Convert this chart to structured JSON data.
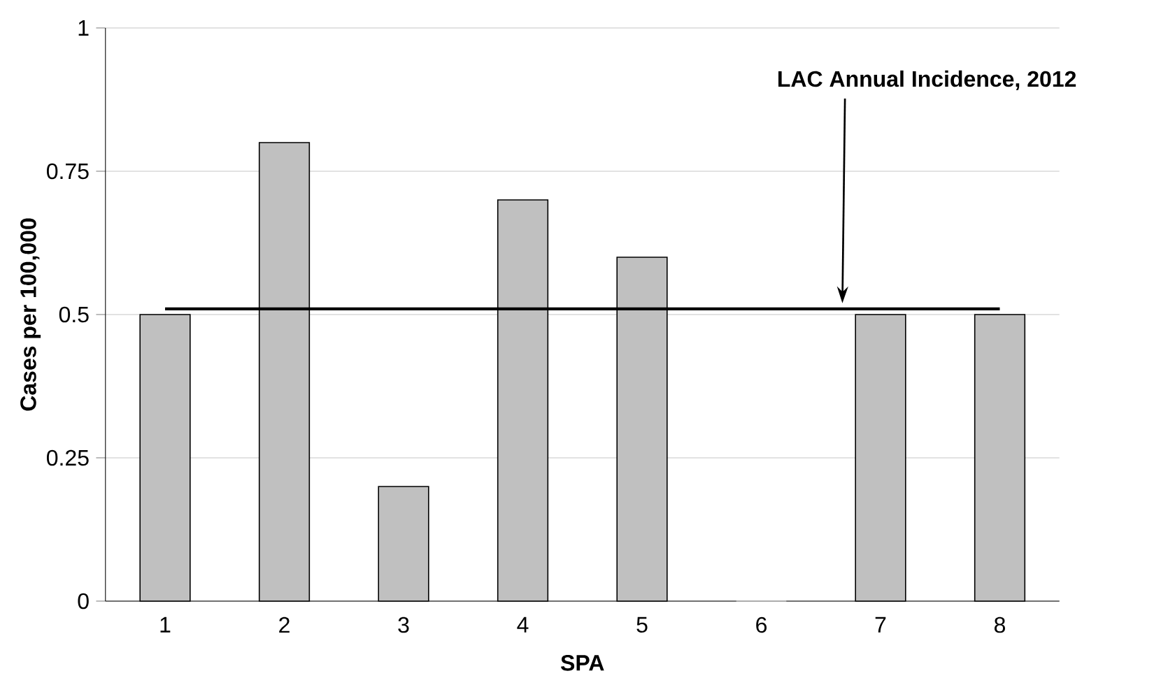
{
  "chart_data": {
    "type": "bar",
    "xlabel": "SPA",
    "ylabel": "Cases per 100,000",
    "categories": [
      "1",
      "2",
      "3",
      "4",
      "5",
      "6",
      "7",
      "8"
    ],
    "values": [
      0.5,
      0.8,
      0.2,
      0.7,
      0.6,
      0,
      0.5,
      0.5
    ],
    "color": "#c0c0c0",
    "ylim": [
      0,
      1
    ],
    "yticks": [
      0,
      0.25,
      0.5,
      0.75,
      1
    ],
    "grid": "y",
    "ref_lines": [
      {
        "axis": "y",
        "value": 0.51,
        "label": "LAC Annual Incidence, 2012",
        "color": "#000000"
      }
    ]
  }
}
